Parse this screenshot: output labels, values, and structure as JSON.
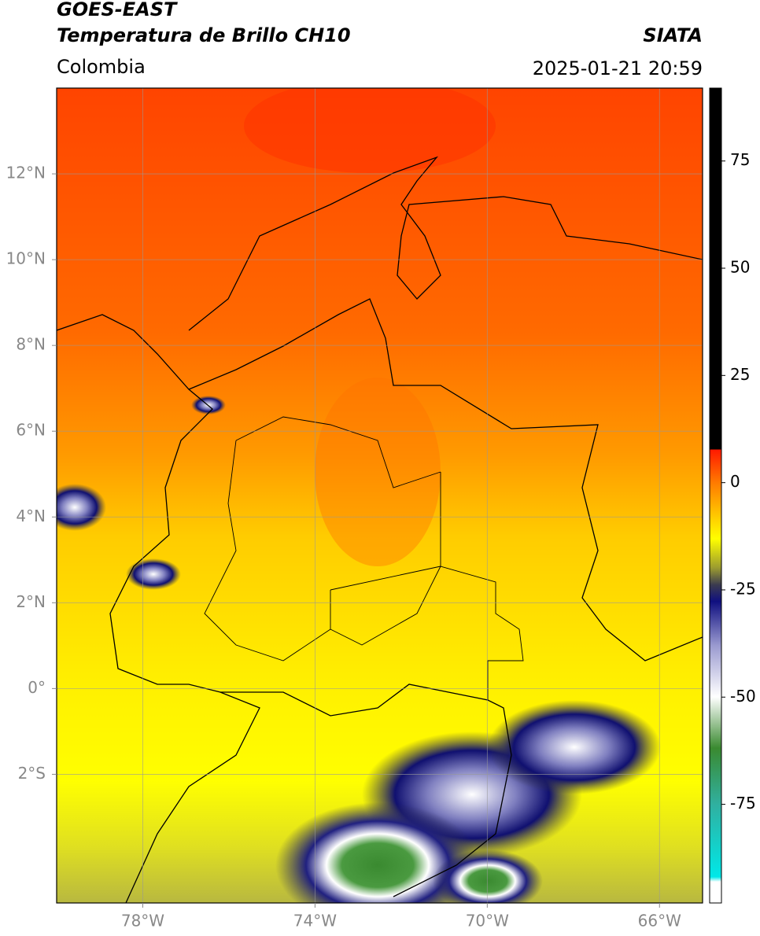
{
  "header": {
    "title": "GOES-EAST",
    "subtitle": "Temperatura de Brillo CH10",
    "region": "Colombia",
    "source": "SIATA",
    "datetime": "2025-01-21 20:59"
  },
  "map": {
    "lonlim": [
      -80,
      -65
    ],
    "latlim": [
      -5,
      14
    ],
    "lon_ticks": [
      {
        "value": -78,
        "label": "78°W"
      },
      {
        "value": -74,
        "label": "74°W"
      },
      {
        "value": -70,
        "label": "70°W"
      },
      {
        "value": -66,
        "label": "66°W"
      }
    ],
    "lat_ticks": [
      {
        "value": 12,
        "label": "12°N"
      },
      {
        "value": 10,
        "label": "10°N"
      },
      {
        "value": 8,
        "label": "8°N"
      },
      {
        "value": 6,
        "label": "6°N"
      },
      {
        "value": 4,
        "label": "4°N"
      },
      {
        "value": 2,
        "label": "2°N"
      },
      {
        "value": 0,
        "label": "0°"
      },
      {
        "value": -2,
        "label": "2°S"
      }
    ],
    "grid": true
  },
  "colorbar": {
    "lim": [
      -98,
      92
    ],
    "ticks": [
      75,
      50,
      25,
      0,
      -25,
      -50,
      -75
    ]
  }
}
